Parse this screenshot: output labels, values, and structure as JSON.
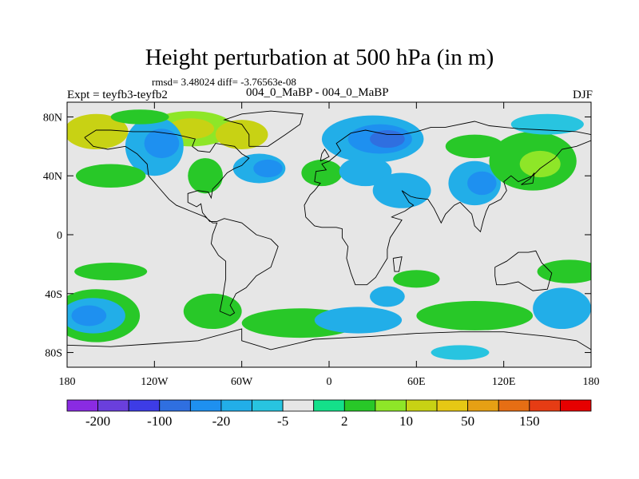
{
  "title": "Height perturbation at 500 hPa (in m)",
  "stats": "rmsd= 3.48024 diff= -3.76563e-08",
  "left_label": "Expt = teyfb3-teyfb2",
  "center_label": "004_0_MaBP - 004_0_MaBP",
  "right_label": "DJF",
  "map": {
    "projection": "cylindrical-equidistant",
    "lon_range": [
      -180,
      180
    ],
    "lat_range": [
      -90,
      90
    ],
    "lon_ticks": [
      {
        "value": -180,
        "label": "180"
      },
      {
        "value": -120,
        "label": "120W"
      },
      {
        "value": -60,
        "label": "60W"
      },
      {
        "value": 0,
        "label": "0"
      },
      {
        "value": 60,
        "label": "60E"
      },
      {
        "value": 120,
        "label": "120E"
      },
      {
        "value": 180,
        "label": "180"
      }
    ],
    "lat_ticks": [
      {
        "value": 80,
        "label": "80N"
      },
      {
        "value": 40,
        "label": "40N"
      },
      {
        "value": 0,
        "label": "0"
      },
      {
        "value": -40,
        "label": "40S"
      },
      {
        "value": -80,
        "label": "80S"
      }
    ],
    "background_color": "#e6e6e6",
    "coastline_color": "#000000"
  },
  "colorbar": {
    "colors": [
      "#8a2be2",
      "#6a3fdc",
      "#3d3ce6",
      "#2f6fe0",
      "#1e90f0",
      "#22aee8",
      "#28c4e0",
      "#e6e6e6",
      "#14e08a",
      "#28c828",
      "#8ee628",
      "#c8d214",
      "#e6c814",
      "#e6a014",
      "#e66e14",
      "#e63c14",
      "#e60000"
    ],
    "labels": [
      {
        "index": 1,
        "text": "-200"
      },
      {
        "index": 3,
        "text": "-100"
      },
      {
        "index": 5,
        "text": "-20"
      },
      {
        "index": 7,
        "text": "-5"
      },
      {
        "index": 9,
        "text": "2"
      },
      {
        "index": 11,
        "text": "10"
      },
      {
        "index": 13,
        "text": "50"
      },
      {
        "index": 15,
        "text": "150"
      }
    ]
  },
  "anomalies": [
    {
      "lon": -160,
      "lat": 70,
      "rx": 22,
      "ry": 12,
      "v": 4
    },
    {
      "lon": -95,
      "lat": 72,
      "rx": 30,
      "ry": 12,
      "v": 3
    },
    {
      "lon": -95,
      "lat": 72,
      "rx": 16,
      "ry": 7,
      "v": 4
    },
    {
      "lon": -60,
      "lat": 68,
      "rx": 18,
      "ry": 10,
      "v": 4
    },
    {
      "lon": -120,
      "lat": 60,
      "rx": 20,
      "ry": 20,
      "v": -2
    },
    {
      "lon": -115,
      "lat": 62,
      "rx": 12,
      "ry": 10,
      "v": -3
    },
    {
      "lon": -48,
      "lat": 45,
      "rx": 18,
      "ry": 10,
      "v": -2
    },
    {
      "lon": -42,
      "lat": 45,
      "rx": 10,
      "ry": 6,
      "v": -3
    },
    {
      "lon": -85,
      "lat": 40,
      "rx": 12,
      "ry": 12,
      "v": 2
    },
    {
      "lon": -150,
      "lat": 40,
      "rx": 24,
      "ry": 8,
      "v": 2
    },
    {
      "lon": 30,
      "lat": 65,
      "rx": 35,
      "ry": 16,
      "v": -2
    },
    {
      "lon": 35,
      "lat": 65,
      "rx": 22,
      "ry": 10,
      "v": -3
    },
    {
      "lon": 40,
      "lat": 65,
      "rx": 12,
      "ry": 6,
      "v": -4
    },
    {
      "lon": -5,
      "lat": 42,
      "rx": 14,
      "ry": 9,
      "v": 2
    },
    {
      "lon": 25,
      "lat": 43,
      "rx": 18,
      "ry": 10,
      "v": -2
    },
    {
      "lon": 50,
      "lat": 30,
      "rx": 20,
      "ry": 12,
      "v": -2
    },
    {
      "lon": 100,
      "lat": 35,
      "rx": 18,
      "ry": 15,
      "v": -2
    },
    {
      "lon": 105,
      "lat": 35,
      "rx": 10,
      "ry": 8,
      "v": -3
    },
    {
      "lon": 140,
      "lat": 50,
      "rx": 30,
      "ry": 20,
      "v": 2
    },
    {
      "lon": 145,
      "lat": 48,
      "rx": 14,
      "ry": 9,
      "v": 3
    },
    {
      "lon": 100,
      "lat": 60,
      "rx": 20,
      "ry": 8,
      "v": 2
    },
    {
      "lon": 150,
      "lat": 75,
      "rx": 25,
      "ry": 7,
      "v": -1
    },
    {
      "lon": -160,
      "lat": -55,
      "rx": 30,
      "ry": 18,
      "v": 2
    },
    {
      "lon": -162,
      "lat": -55,
      "rx": 22,
      "ry": 12,
      "v": -2
    },
    {
      "lon": -165,
      "lat": -55,
      "rx": 12,
      "ry": 7,
      "v": -3
    },
    {
      "lon": -150,
      "lat": -25,
      "rx": 25,
      "ry": 6,
      "v": 2
    },
    {
      "lon": -80,
      "lat": -52,
      "rx": 20,
      "ry": 12,
      "v": 2
    },
    {
      "lon": -20,
      "lat": -60,
      "rx": 40,
      "ry": 10,
      "v": 2
    },
    {
      "lon": 20,
      "lat": -58,
      "rx": 30,
      "ry": 9,
      "v": -2
    },
    {
      "lon": 40,
      "lat": -42,
      "rx": 12,
      "ry": 7,
      "v": -2
    },
    {
      "lon": 60,
      "lat": -30,
      "rx": 16,
      "ry": 6,
      "v": 2
    },
    {
      "lon": 100,
      "lat": -55,
      "rx": 40,
      "ry": 10,
      "v": 2
    },
    {
      "lon": 160,
      "lat": -50,
      "rx": 20,
      "ry": 14,
      "v": -2
    },
    {
      "lon": 165,
      "lat": -25,
      "rx": 22,
      "ry": 8,
      "v": 2
    },
    {
      "lon": 90,
      "lat": -80,
      "rx": 20,
      "ry": 5,
      "v": -1
    },
    {
      "lon": -130,
      "lat": 80,
      "rx": 20,
      "ry": 5,
      "v": 2
    }
  ],
  "coastlines": [
    [
      [
        -168,
        66
      ],
      [
        -162,
        60
      ],
      [
        -152,
        58
      ],
      [
        -140,
        60
      ],
      [
        -132,
        55
      ],
      [
        -125,
        48
      ],
      [
        -124,
        40
      ],
      [
        -117,
        32
      ],
      [
        -110,
        24
      ],
      [
        -105,
        20
      ],
      [
        -95,
        16
      ],
      [
        -85,
        12
      ],
      [
        -80,
        8
      ],
      [
        -77,
        8
      ],
      [
        -80,
        0
      ],
      [
        -81,
        -6
      ],
      [
        -76,
        -14
      ],
      [
        -71,
        -18
      ],
      [
        -71,
        -30
      ],
      [
        -73,
        -42
      ],
      [
        -75,
        -52
      ],
      [
        -68,
        -55
      ],
      [
        -65,
        -53
      ],
      [
        -68,
        -48
      ],
      [
        -64,
        -40
      ],
      [
        -57,
        -36
      ],
      [
        -50,
        -28
      ],
      [
        -40,
        -22
      ],
      [
        -35,
        -8
      ],
      [
        -40,
        -3
      ],
      [
        -50,
        0
      ],
      [
        -60,
        8
      ],
      [
        -72,
        11
      ],
      [
        -77,
        9
      ],
      [
        -82,
        9
      ],
      [
        -87,
        15
      ],
      [
        -88,
        21
      ],
      [
        -91,
        19
      ],
      [
        -97,
        22
      ],
      [
        -97,
        28
      ],
      [
        -90,
        30
      ],
      [
        -83,
        29
      ],
      [
        -81,
        25
      ],
      [
        -80,
        31
      ],
      [
        -76,
        35
      ],
      [
        -70,
        42
      ],
      [
        -65,
        45
      ],
      [
        -60,
        47
      ],
      [
        -55,
        52
      ],
      [
        -60,
        55
      ],
      [
        -65,
        60
      ],
      [
        -78,
        62
      ],
      [
        -82,
        56
      ],
      [
        -90,
        57
      ],
      [
        -94,
        60
      ],
      [
        -92,
        65
      ],
      [
        -105,
        68
      ],
      [
        -120,
        70
      ],
      [
        -135,
        70
      ],
      [
        -150,
        71
      ],
      [
        -160,
        71
      ],
      [
        -168,
        66
      ]
    ],
    [
      [
        -55,
        60
      ],
      [
        -42,
        60
      ],
      [
        -30,
        68
      ],
      [
        -20,
        75
      ],
      [
        -18,
        82
      ],
      [
        -40,
        84
      ],
      [
        -60,
        82
      ],
      [
        -72,
        78
      ],
      [
        -60,
        75
      ],
      [
        -55,
        68
      ],
      [
        -55,
        60
      ]
    ],
    [
      [
        -10,
        36
      ],
      [
        -9,
        43
      ],
      [
        -2,
        44
      ],
      [
        -5,
        48
      ],
      [
        0,
        50
      ],
      [
        5,
        54
      ],
      [
        8,
        57
      ],
      [
        5,
        62
      ],
      [
        15,
        69
      ],
      [
        25,
        71
      ],
      [
        40,
        68
      ],
      [
        50,
        68
      ],
      [
        60,
        70
      ],
      [
        70,
        73
      ],
      [
        80,
        73
      ],
      [
        100,
        77
      ],
      [
        110,
        74
      ],
      [
        130,
        72
      ],
      [
        150,
        71
      ],
      [
        170,
        70
      ],
      [
        180,
        68
      ],
      [
        180,
        64
      ],
      [
        170,
        60
      ],
      [
        160,
        58
      ],
      [
        155,
        52
      ],
      [
        145,
        45
      ],
      [
        140,
        40
      ],
      [
        130,
        36
      ],
      [
        125,
        40
      ],
      [
        120,
        36
      ],
      [
        122,
        30
      ],
      [
        118,
        24
      ],
      [
        110,
        20
      ],
      [
        108,
        16
      ],
      [
        106,
        10
      ],
      [
        104,
        2
      ],
      [
        100,
        6
      ],
      [
        98,
        14
      ],
      [
        94,
        18
      ],
      [
        90,
        22
      ],
      [
        86,
        20
      ],
      [
        80,
        14
      ],
      [
        77,
        8
      ],
      [
        72,
        18
      ],
      [
        68,
        24
      ],
      [
        60,
        25
      ],
      [
        56,
        26
      ],
      [
        50,
        30
      ],
      [
        55,
        22
      ],
      [
        58,
        20
      ],
      [
        52,
        16
      ],
      [
        45,
        13
      ],
      [
        43,
        12
      ],
      [
        50,
        10
      ],
      [
        42,
        -2
      ],
      [
        40,
        -10
      ],
      [
        40,
        -16
      ],
      [
        35,
        -24
      ],
      [
        32,
        -29
      ],
      [
        26,
        -34
      ],
      [
        18,
        -34
      ],
      [
        15,
        -26
      ],
      [
        12,
        -16
      ],
      [
        13,
        -8
      ],
      [
        9,
        -2
      ],
      [
        9,
        4
      ],
      [
        5,
        5
      ],
      [
        -5,
        5
      ],
      [
        -10,
        6
      ],
      [
        -16,
        12
      ],
      [
        -17,
        20
      ],
      [
        -13,
        27
      ],
      [
        -10,
        30
      ],
      [
        -6,
        35
      ],
      [
        -10,
        36
      ]
    ],
    [
      [
        114,
        -22
      ],
      [
        122,
        -18
      ],
      [
        130,
        -12
      ],
      [
        137,
        -12
      ],
      [
        142,
        -11
      ],
      [
        146,
        -19
      ],
      [
        153,
        -26
      ],
      [
        150,
        -37
      ],
      [
        140,
        -38
      ],
      [
        135,
        -35
      ],
      [
        130,
        -32
      ],
      [
        120,
        -34
      ],
      [
        115,
        -34
      ],
      [
        114,
        -28
      ],
      [
        114,
        -22
      ]
    ],
    [
      [
        44,
        -16
      ],
      [
        50,
        -15
      ],
      [
        48,
        -25
      ],
      [
        45,
        -25
      ],
      [
        44,
        -16
      ]
    ],
    [
      [
        -180,
        -75
      ],
      [
        -150,
        -76
      ],
      [
        -120,
        -74
      ],
      [
        -90,
        -72
      ],
      [
        -60,
        -64
      ],
      [
        -60,
        -72
      ],
      [
        -40,
        -78
      ],
      [
        -10,
        -71
      ],
      [
        30,
        -69
      ],
      [
        60,
        -67
      ],
      [
        90,
        -66
      ],
      [
        120,
        -66
      ],
      [
        150,
        -69
      ],
      [
        170,
        -72
      ],
      [
        180,
        -78
      ]
    ],
    [
      [
        -6,
        50
      ],
      [
        -5,
        55
      ],
      [
        -3,
        58
      ],
      [
        0,
        53
      ],
      [
        -6,
        50
      ]
    ],
    [
      [
        140,
        35
      ],
      [
        141,
        42
      ],
      [
        138,
        38
      ],
      [
        132,
        34
      ],
      [
        140,
        35
      ]
    ]
  ]
}
